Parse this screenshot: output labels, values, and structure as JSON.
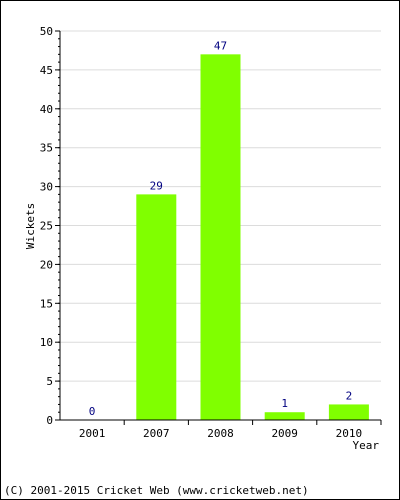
{
  "chart_data": {
    "type": "bar",
    "categories": [
      "2001",
      "2007",
      "2008",
      "2009",
      "2010"
    ],
    "values": [
      0,
      29,
      47,
      1,
      2
    ],
    "data_labels": [
      "0",
      "29",
      "47",
      "1",
      "2"
    ],
    "xlabel": "Year",
    "ylabel": "Wickets",
    "ylim": [
      0,
      50
    ],
    "yticks": [
      "0",
      "5",
      "10",
      "15",
      "20",
      "25",
      "30",
      "35",
      "40",
      "45",
      "50"
    ],
    "grid": true,
    "bar_color": "#80ff00",
    "label_color": "#000080"
  },
  "footer": {
    "copyright": "(C) 2001-2015 Cricket Web (www.cricketweb.net)"
  }
}
